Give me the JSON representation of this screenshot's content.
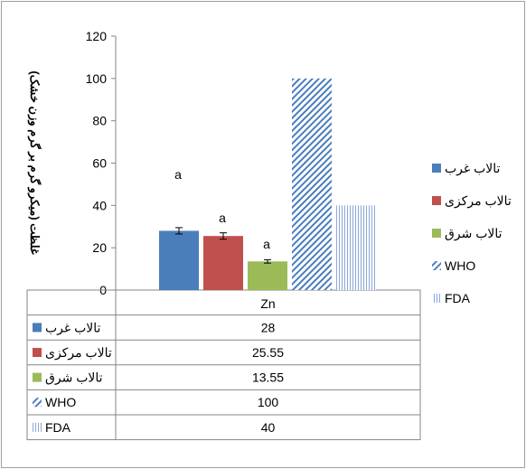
{
  "chart_data": {
    "type": "bar",
    "categories": [
      "Zn"
    ],
    "ylabel": "غلظت (میکرو گرم بر گرم وزن خشک)",
    "ylim": [
      0,
      120
    ],
    "yticks": [
      0,
      20,
      40,
      60,
      80,
      100,
      120
    ],
    "grid": false,
    "legend_position": "right",
    "series": [
      {
        "name": "تالاب غرب",
        "values": [
          28
        ],
        "display_value": "28",
        "error": 1.5,
        "annotation": "a",
        "color": "#4a7ebb",
        "pattern": "solid"
      },
      {
        "name": "تالاب مرکزی",
        "values": [
          25.55
        ],
        "display_value": "25.55",
        "error": 1.5,
        "annotation": "a",
        "color": "#c0504d",
        "pattern": "solid"
      },
      {
        "name": "تالاب شرق",
        "values": [
          13.55
        ],
        "display_value": "13.55",
        "error": 0.8,
        "annotation": "a",
        "color": "#9bbb59",
        "pattern": "solid"
      },
      {
        "name": "WHO",
        "values": [
          100
        ],
        "display_value": "100",
        "color": "#4a7ebb",
        "pattern": "diagonal"
      },
      {
        "name": "FDA",
        "values": [
          40
        ],
        "display_value": "40",
        "color": "#4a7ebb",
        "pattern": "vertical"
      }
    ]
  }
}
